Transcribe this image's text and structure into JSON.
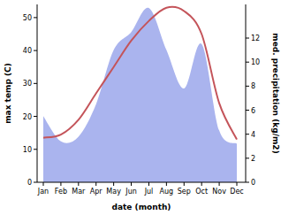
{
  "chart_data": {
    "type": "line",
    "xlabel": "date (month)",
    "ylabel": "max temp (C)",
    "y2label": "med. precipitation (kg/m2)",
    "categories": [
      "Jan",
      "Feb",
      "Mar",
      "Apr",
      "May",
      "Jun",
      "Jul",
      "Aug",
      "Sep",
      "Oct",
      "Nov",
      "Dec"
    ],
    "ylim": [
      0,
      54
    ],
    "yticks": [
      0,
      10,
      20,
      30,
      40,
      50
    ],
    "y2lim": [
      0,
      14.8
    ],
    "y2ticks": [
      0,
      2,
      4,
      6,
      8,
      10,
      12
    ],
    "series": [
      {
        "type": "area",
        "axis": "y2",
        "color": "#aab4ee",
        "values": [
          5.5,
          3.4,
          3.8,
          6.5,
          11,
          12.5,
          14.5,
          11,
          7.8,
          11.5,
          4.3,
          3.2
        ]
      },
      {
        "type": "line",
        "color": "#c4545a",
        "values": [
          13.5,
          14.5,
          19,
          27,
          35,
          43,
          49,
          53,
          52,
          45,
          24,
          13
        ]
      }
    ]
  }
}
